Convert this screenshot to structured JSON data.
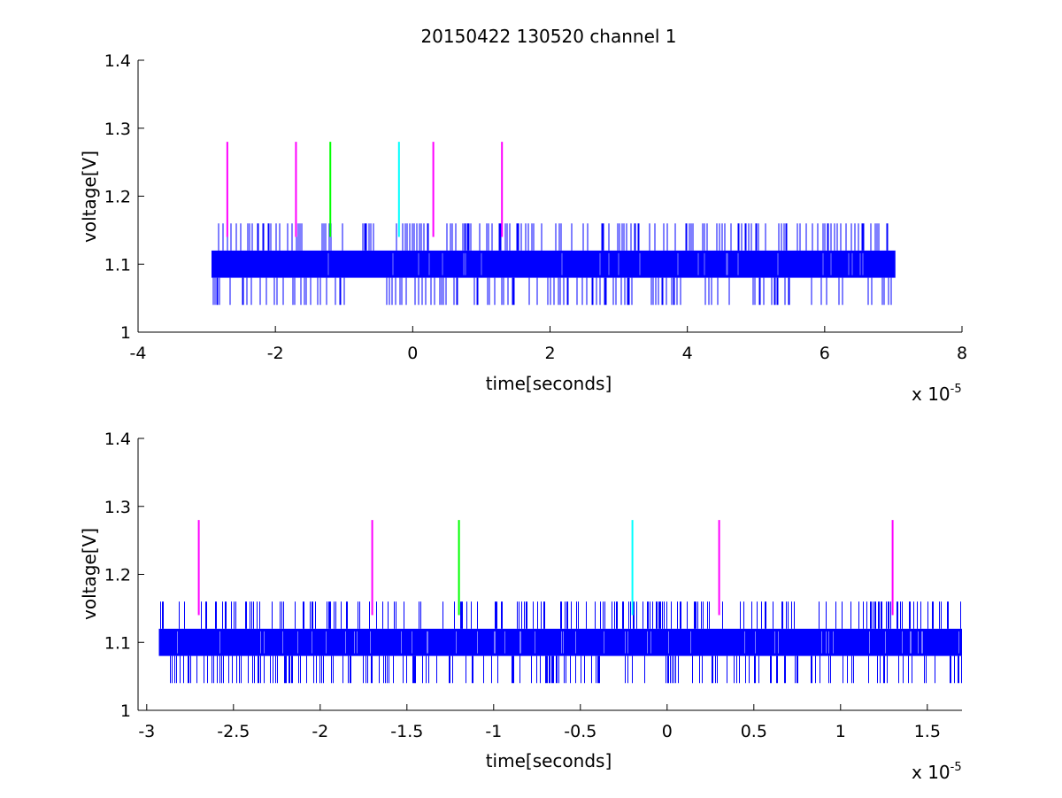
{
  "chart_data": [
    {
      "type": "line",
      "title": "20150422 130520 channel 1",
      "xlabel": "time[seconds]",
      "ylabel": "voltage[V]",
      "x_multiplier_label": "x 10",
      "x_multiplier_exponent": "-5",
      "xlim": [
        -4,
        8
      ],
      "ylim": [
        1,
        1.4
      ],
      "x_ticks": [
        "-4",
        "-2",
        "0",
        "2",
        "4",
        "6",
        "8"
      ],
      "x_tick_values": [
        -4,
        -2,
        0,
        2,
        4,
        6,
        8
      ],
      "y_ticks": [
        "1",
        "1.1",
        "1.2",
        "1.3",
        "1.4"
      ],
      "y_tick_values": [
        1,
        1.1,
        1.2,
        1.3,
        1.4
      ],
      "signal": {
        "color": "#0000ff",
        "x_range": [
          -2.93,
          7.03
        ],
        "band": [
          1.08,
          1.12
        ],
        "spike_high": 1.16,
        "spike_low": 1.04
      },
      "markers": [
        {
          "x": -2.7,
          "y_range": [
            1.14,
            1.28
          ],
          "color": "#ff00ff"
        },
        {
          "x": -1.7,
          "y_range": [
            1.14,
            1.28
          ],
          "color": "#ff00ff"
        },
        {
          "x": -1.2,
          "y_range": [
            1.14,
            1.28
          ],
          "color": "#00ff00"
        },
        {
          "x": -0.2,
          "y_range": [
            1.14,
            1.28
          ],
          "color": "#00ffff"
        },
        {
          "x": 0.3,
          "y_range": [
            1.14,
            1.28
          ],
          "color": "#ff00ff"
        },
        {
          "x": 1.3,
          "y_range": [
            1.14,
            1.28
          ],
          "color": "#ff00ff"
        }
      ],
      "grid": false
    },
    {
      "type": "line",
      "title": "",
      "xlabel": "time[seconds]",
      "ylabel": "voltage[V]",
      "x_multiplier_label": "x 10",
      "x_multiplier_exponent": "-5",
      "xlim": [
        -3.05,
        1.7
      ],
      "ylim": [
        1,
        1.4
      ],
      "x_ticks": [
        "-3",
        "-2.5",
        "-2",
        "-1.5",
        "-1",
        "-0.5",
        "0",
        "0.5",
        "1",
        "1.5"
      ],
      "x_tick_values": [
        -3,
        -2.5,
        -2,
        -1.5,
        -1,
        -0.5,
        0,
        0.5,
        1,
        1.5
      ],
      "y_ticks": [
        "1",
        "1.1",
        "1.2",
        "1.3",
        "1.4"
      ],
      "y_tick_values": [
        1,
        1.1,
        1.2,
        1.3,
        1.4
      ],
      "signal": {
        "color": "#0000ff",
        "x_range": [
          -2.93,
          1.7
        ],
        "band": [
          1.08,
          1.12
        ],
        "spike_high": 1.16,
        "spike_low": 1.04
      },
      "markers": [
        {
          "x": -2.7,
          "y_range": [
            1.14,
            1.28
          ],
          "color": "#ff00ff"
        },
        {
          "x": -1.7,
          "y_range": [
            1.14,
            1.28
          ],
          "color": "#ff00ff"
        },
        {
          "x": -1.2,
          "y_range": [
            1.14,
            1.28
          ],
          "color": "#00ff00"
        },
        {
          "x": -0.2,
          "y_range": [
            1.14,
            1.28
          ],
          "color": "#00ffff"
        },
        {
          "x": 0.3,
          "y_range": [
            1.14,
            1.28
          ],
          "color": "#ff00ff"
        },
        {
          "x": 1.3,
          "y_range": [
            1.14,
            1.28
          ],
          "color": "#ff00ff"
        }
      ],
      "grid": false
    }
  ]
}
